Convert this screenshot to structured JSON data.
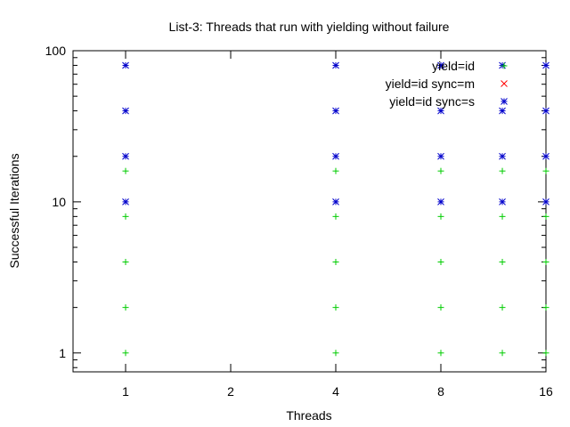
{
  "chart_data": {
    "type": "scatter",
    "title": "List-3: Threads that run with yielding without failure",
    "xlabel": "Threads",
    "ylabel": "Successful Iterations",
    "x_scale": "log",
    "y_scale": "log",
    "xlim": [
      0.707,
      16
    ],
    "ylim": [
      0.75,
      100
    ],
    "x_ticks": [
      1,
      2,
      4,
      8,
      16
    ],
    "x_tick_labels": [
      "1",
      "2",
      "4",
      "8",
      "16"
    ],
    "y_ticks": [
      1,
      10,
      100
    ],
    "y_tick_labels": [
      "1",
      "10",
      "100"
    ],
    "grid": false,
    "legend_position": "top-right",
    "series": [
      {
        "name": "yield=id",
        "marker": "+",
        "color": "#00cc00",
        "points": [
          [
            1,
            1
          ],
          [
            1,
            2
          ],
          [
            1,
            4
          ],
          [
            1,
            8
          ],
          [
            1,
            16
          ],
          [
            4,
            1
          ],
          [
            4,
            2
          ],
          [
            4,
            4
          ],
          [
            4,
            8
          ],
          [
            4,
            16
          ],
          [
            8,
            1
          ],
          [
            8,
            2
          ],
          [
            8,
            4
          ],
          [
            8,
            8
          ],
          [
            8,
            16
          ],
          [
            12,
            1
          ],
          [
            12,
            2
          ],
          [
            12,
            4
          ],
          [
            12,
            8
          ],
          [
            12,
            16
          ],
          [
            16,
            1
          ],
          [
            16,
            2
          ],
          [
            16,
            4
          ],
          [
            16,
            8
          ],
          [
            16,
            16
          ]
        ]
      },
      {
        "name": "yield=id sync=m",
        "marker": "x",
        "color": "#ff0000",
        "points": []
      },
      {
        "name": "yield=id sync=s",
        "marker": "*",
        "color": "#0000cc",
        "points": [
          [
            1,
            10
          ],
          [
            1,
            20
          ],
          [
            1,
            40
          ],
          [
            1,
            80
          ],
          [
            4,
            10
          ],
          [
            4,
            20
          ],
          [
            4,
            40
          ],
          [
            4,
            80
          ],
          [
            8,
            10
          ],
          [
            8,
            20
          ],
          [
            8,
            40
          ],
          [
            8,
            80
          ],
          [
            12,
            10
          ],
          [
            12,
            20
          ],
          [
            12,
            40
          ],
          [
            12,
            80
          ],
          [
            16,
            10
          ],
          [
            16,
            20
          ],
          [
            16,
            40
          ],
          [
            16,
            80
          ]
        ]
      }
    ]
  }
}
